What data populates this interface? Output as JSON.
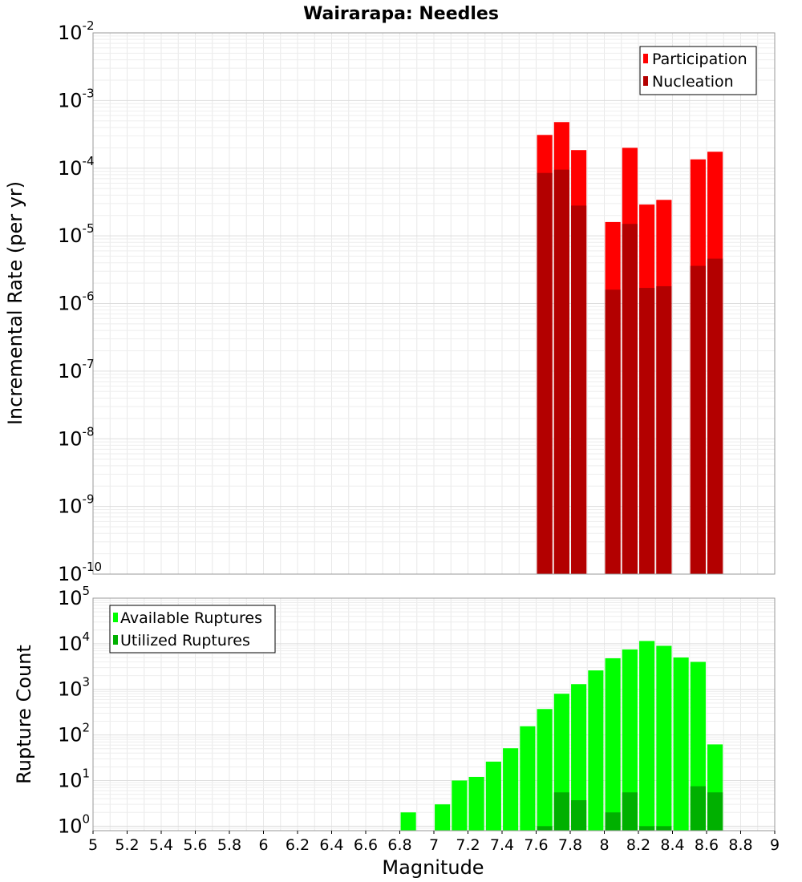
{
  "chart_data": [
    {
      "type": "bar",
      "title": "Wairarapa: Needles",
      "xlabel": "",
      "ylabel": "Incremental Rate (per yr)",
      "xlim": [
        5,
        9
      ],
      "ylim_exponent": [
        -10,
        -2
      ],
      "yscale": "log",
      "grid": true,
      "legend_position": "top-right",
      "bar_width": 0.09,
      "y_tick_base": "10",
      "y_tick_exponents": [
        "-10",
        "-9",
        "-8",
        "-7",
        "-6",
        "-5",
        "-4",
        "-3",
        "-2"
      ],
      "series": [
        {
          "name": "Participation",
          "color": "#ff0000",
          "points": [
            [
              7.65,
              0.00031
            ],
            [
              7.75,
              0.00048
            ],
            [
              7.85,
              0.000185
            ],
            [
              8.05,
              1.6e-05
            ],
            [
              8.15,
              0.0002
            ],
            [
              8.25,
              2.9e-05
            ],
            [
              8.35,
              3.4e-05
            ],
            [
              8.55,
              0.000135
            ],
            [
              8.65,
              0.000175
            ]
          ]
        },
        {
          "name": "Nucleation",
          "color": "#b30000",
          "points": [
            [
              7.65,
              8.5e-05
            ],
            [
              7.75,
              9.5e-05
            ],
            [
              7.85,
              2.8e-05
            ],
            [
              8.05,
              1.6e-06
            ],
            [
              8.15,
              1.5e-05
            ],
            [
              8.25,
              1.7e-06
            ],
            [
              8.35,
              1.8e-06
            ],
            [
              8.55,
              3.6e-06
            ],
            [
              8.65,
              4.6e-06
            ]
          ]
        }
      ]
    },
    {
      "type": "bar",
      "title": "",
      "xlabel": "Magnitude",
      "ylabel": "Rupture Count",
      "xlim": [
        5,
        9
      ],
      "ylim_exponent": [
        -0.1,
        5
      ],
      "yscale": "log",
      "grid": true,
      "legend_position": "top-left",
      "bar_width": 0.09,
      "y_tick_base": "10",
      "y_tick_exponents": [
        "0",
        "1",
        "2",
        "3",
        "4",
        "5"
      ],
      "x_tick_labels": [
        "5",
        "5.2",
        "5.4",
        "5.6",
        "5.8",
        "6",
        "6.2",
        "6.4",
        "6.6",
        "6.8",
        "7",
        "7.2",
        "7.4",
        "7.6",
        "7.8",
        "8",
        "8.2",
        "8.4",
        "8.6",
        "8.8",
        "9"
      ],
      "series": [
        {
          "name": "Available Ruptures",
          "color": "#00ff00",
          "points": [
            [
              6.85,
              2
            ],
            [
              7.05,
              3
            ],
            [
              7.15,
              10
            ],
            [
              7.25,
              12
            ],
            [
              7.35,
              26
            ],
            [
              7.45,
              51
            ],
            [
              7.55,
              155
            ],
            [
              7.65,
              370
            ],
            [
              7.75,
              800
            ],
            [
              7.85,
              1300
            ],
            [
              7.95,
              2600
            ],
            [
              8.05,
              4800
            ],
            [
              8.15,
              7500
            ],
            [
              8.25,
              11500
            ],
            [
              8.35,
              9000
            ],
            [
              8.45,
              5000
            ],
            [
              8.55,
              4000
            ],
            [
              8.65,
              62
            ]
          ]
        },
        {
          "name": "Utilized Ruptures",
          "color": "#00b000",
          "points": [
            [
              7.65,
              1
            ],
            [
              7.75,
              5.5
            ],
            [
              7.85,
              3.7
            ],
            [
              8.05,
              2
            ],
            [
              8.15,
              5.5
            ],
            [
              8.25,
              1
            ],
            [
              8.35,
              1
            ],
            [
              8.55,
              7.5
            ],
            [
              8.65,
              5.5
            ]
          ]
        }
      ]
    }
  ]
}
